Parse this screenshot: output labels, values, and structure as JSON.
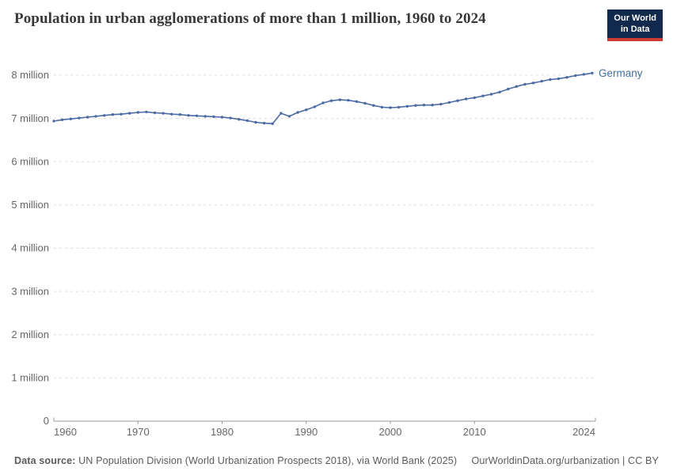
{
  "header": {
    "title": "Population in urban agglomerations of more than 1 million, 1960 to 2024",
    "logo": {
      "line1": "Our World",
      "line2": "in Data"
    }
  },
  "chart_data": {
    "type": "line",
    "title": "Population in urban agglomerations of more than 1 million, 1960 to 2024",
    "xlabel": "",
    "ylabel": "",
    "xlim": [
      1960,
      2024
    ],
    "ylim": [
      0,
      8.55
    ],
    "grid": "horizontal-dashed",
    "legend_position": "end-of-line-label",
    "x_ticks": [
      1960,
      1970,
      1980,
      1990,
      2000,
      2010,
      2024
    ],
    "y_ticks": [
      0,
      1,
      2,
      3,
      4,
      5,
      6,
      7,
      8
    ],
    "y_tick_labels": [
      "0",
      "1 million",
      "2 million",
      "3 million",
      "4 million",
      "5 million",
      "6 million",
      "7 million",
      "8 million"
    ],
    "series": [
      {
        "name": "Germany",
        "color": "#4c6ba5",
        "x": [
          1960,
          1961,
          1962,
          1963,
          1964,
          1965,
          1966,
          1967,
          1968,
          1969,
          1970,
          1971,
          1972,
          1973,
          1974,
          1975,
          1976,
          1977,
          1978,
          1979,
          1980,
          1981,
          1982,
          1983,
          1984,
          1985,
          1986,
          1987,
          1988,
          1989,
          1990,
          1991,
          1992,
          1993,
          1994,
          1995,
          1996,
          1997,
          1998,
          1999,
          2000,
          2001,
          2002,
          2003,
          2004,
          2005,
          2006,
          2007,
          2008,
          2009,
          2010,
          2011,
          2012,
          2013,
          2014,
          2015,
          2016,
          2017,
          2018,
          2019,
          2020,
          2021,
          2022,
          2023,
          2024
        ],
        "values": [
          6.94,
          6.97,
          6.99,
          7.01,
          7.03,
          7.05,
          7.07,
          7.09,
          7.1,
          7.12,
          7.14,
          7.15,
          7.13,
          7.12,
          7.1,
          7.09,
          7.07,
          7.06,
          7.05,
          7.04,
          7.03,
          7.01,
          6.98,
          6.95,
          6.91,
          6.89,
          6.88,
          7.12,
          7.05,
          7.14,
          7.2,
          7.27,
          7.36,
          7.41,
          7.43,
          7.42,
          7.39,
          7.35,
          7.3,
          7.26,
          7.25,
          7.26,
          7.28,
          7.3,
          7.31,
          7.31,
          7.33,
          7.37,
          7.41,
          7.45,
          7.48,
          7.52,
          7.56,
          7.61,
          7.68,
          7.74,
          7.79,
          7.82,
          7.86,
          7.9,
          7.92,
          7.95,
          7.99,
          8.02,
          8.05
        ]
      }
    ]
  },
  "footer": {
    "source_label": "Data source:",
    "source_text": " UN Population Division (World Urbanization Prospects 2018), via World Bank (2025)",
    "link": "OurWorldinData.org/urbanization",
    "license": " | CC BY"
  },
  "colors": {
    "line_blue": "#4c6ba5",
    "entity_label_blue": "#41709f",
    "grid": "#dcdcdc",
    "axis": "#9a9a9a",
    "tick_text": "#666666",
    "title_text": "#383838",
    "footer_text": "#5b5b5b",
    "logo_navy": "#12294e",
    "logo_red": "#cc3a31"
  }
}
